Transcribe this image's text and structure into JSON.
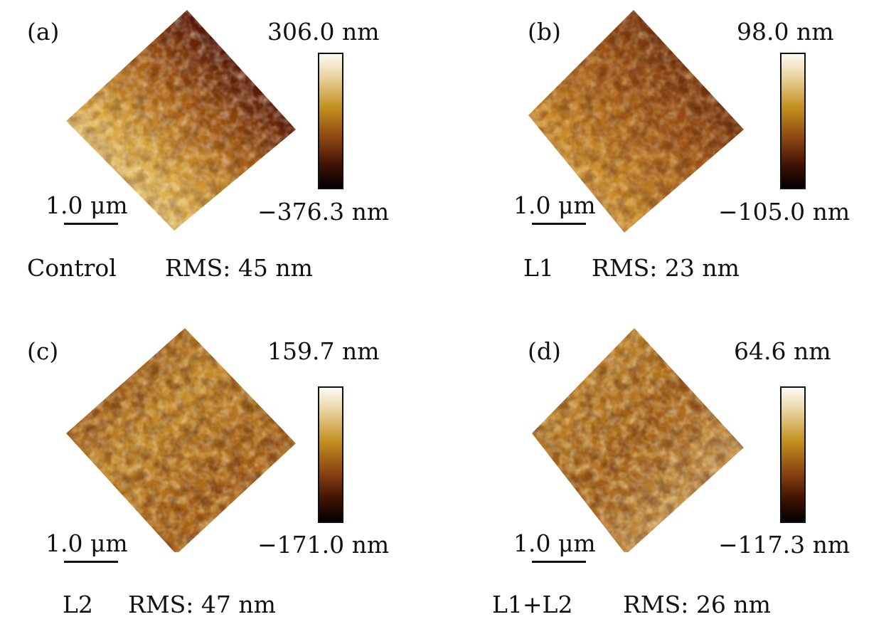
{
  "panels": [
    {
      "letter": "(a)",
      "max": "306.0 nm",
      "min": "−376.3 nm",
      "scalebar": "1.0 μm",
      "sample": "Control",
      "rms": "RMS: 45 nm"
    },
    {
      "letter": "(b)",
      "max": "98.0 nm",
      "min": "−105.0 nm",
      "scalebar": "1.0 μm",
      "sample": "L1",
      "rms": "RMS: 23 nm"
    },
    {
      "letter": "(c)",
      "max": "159.7 nm",
      "min": "−171.0 nm",
      "scalebar": "1.0 μm",
      "sample": "L2",
      "rms": "RMS: 47 nm"
    },
    {
      "letter": "(d)",
      "max": "64.6 nm",
      "min": "−117.3 nm",
      "scalebar": "1.0 μm",
      "sample": "L1+L2",
      "rms": "RMS: 26 nm"
    }
  ],
  "colors": {
    "height_max": "#fdfbf5",
    "height_mid": "#c2901e",
    "height_min": "#000000"
  }
}
